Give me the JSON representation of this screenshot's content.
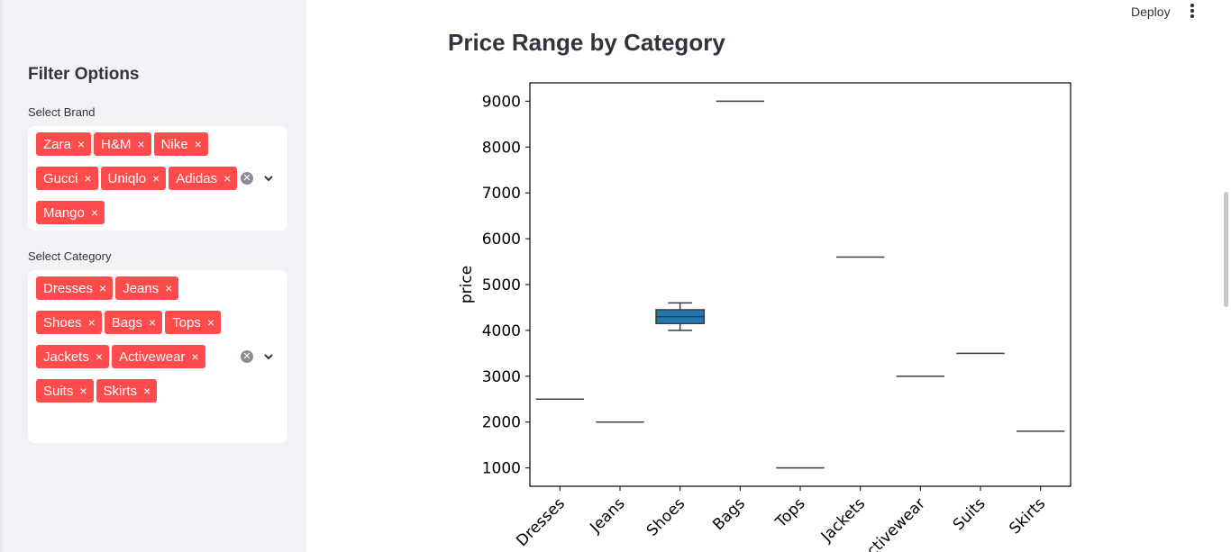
{
  "sidebar": {
    "title": "Filter Options",
    "brand": {
      "label": "Select Brand",
      "selected": [
        "Zara",
        "H&M",
        "Nike",
        "Gucci",
        "Uniqlo",
        "Adidas",
        "Mango"
      ]
    },
    "category": {
      "label": "Select Category",
      "selected": [
        "Dresses",
        "Jeans",
        "Shoes",
        "Bags",
        "Tops",
        "Jackets",
        "Activewear",
        "Suits",
        "Skirts"
      ]
    },
    "tag_remove_glyph": "×",
    "clear_glyph": "✕"
  },
  "header": {
    "deploy_label": "Deploy"
  },
  "main": {
    "title": "Price Range by Category"
  },
  "colors": {
    "accent": "#ff4b4b",
    "box_fill": "#1f77b4",
    "sidebar_bg": "#f0f2f6"
  },
  "chart_data": {
    "type": "box",
    "title": "",
    "xlabel": "",
    "ylabel": "price",
    "ylim": [
      600,
      9400
    ],
    "yticks": [
      1000,
      2000,
      3000,
      4000,
      5000,
      6000,
      7000,
      8000,
      9000
    ],
    "categories": [
      "Dresses",
      "Jeans",
      "Shoes",
      "Bags",
      "Tops",
      "Jackets",
      "Activewear",
      "Suits",
      "Skirts"
    ],
    "boxes": [
      {
        "min": 2500,
        "q1": 2500,
        "median": 2500,
        "q3": 2500,
        "max": 2500
      },
      {
        "min": 2000,
        "q1": 2000,
        "median": 2000,
        "q3": 2000,
        "max": 2000
      },
      {
        "min": 4000,
        "q1": 4150,
        "median": 4300,
        "q3": 4450,
        "max": 4600
      },
      {
        "min": 9000,
        "q1": 9000,
        "median": 9000,
        "q3": 9000,
        "max": 9000
      },
      {
        "min": 1000,
        "q1": 1000,
        "median": 1000,
        "q3": 1000,
        "max": 1000
      },
      {
        "min": 5600,
        "q1": 5600,
        "median": 5600,
        "q3": 5600,
        "max": 5600
      },
      {
        "min": 3000,
        "q1": 3000,
        "median": 3000,
        "q3": 3000,
        "max": 3000
      },
      {
        "min": 3500,
        "q1": 3500,
        "median": 3500,
        "q3": 3500,
        "max": 3500
      },
      {
        "min": 1800,
        "q1": 1800,
        "median": 1800,
        "q3": 1800,
        "max": 1800
      }
    ],
    "grid": false,
    "legend": "none"
  }
}
